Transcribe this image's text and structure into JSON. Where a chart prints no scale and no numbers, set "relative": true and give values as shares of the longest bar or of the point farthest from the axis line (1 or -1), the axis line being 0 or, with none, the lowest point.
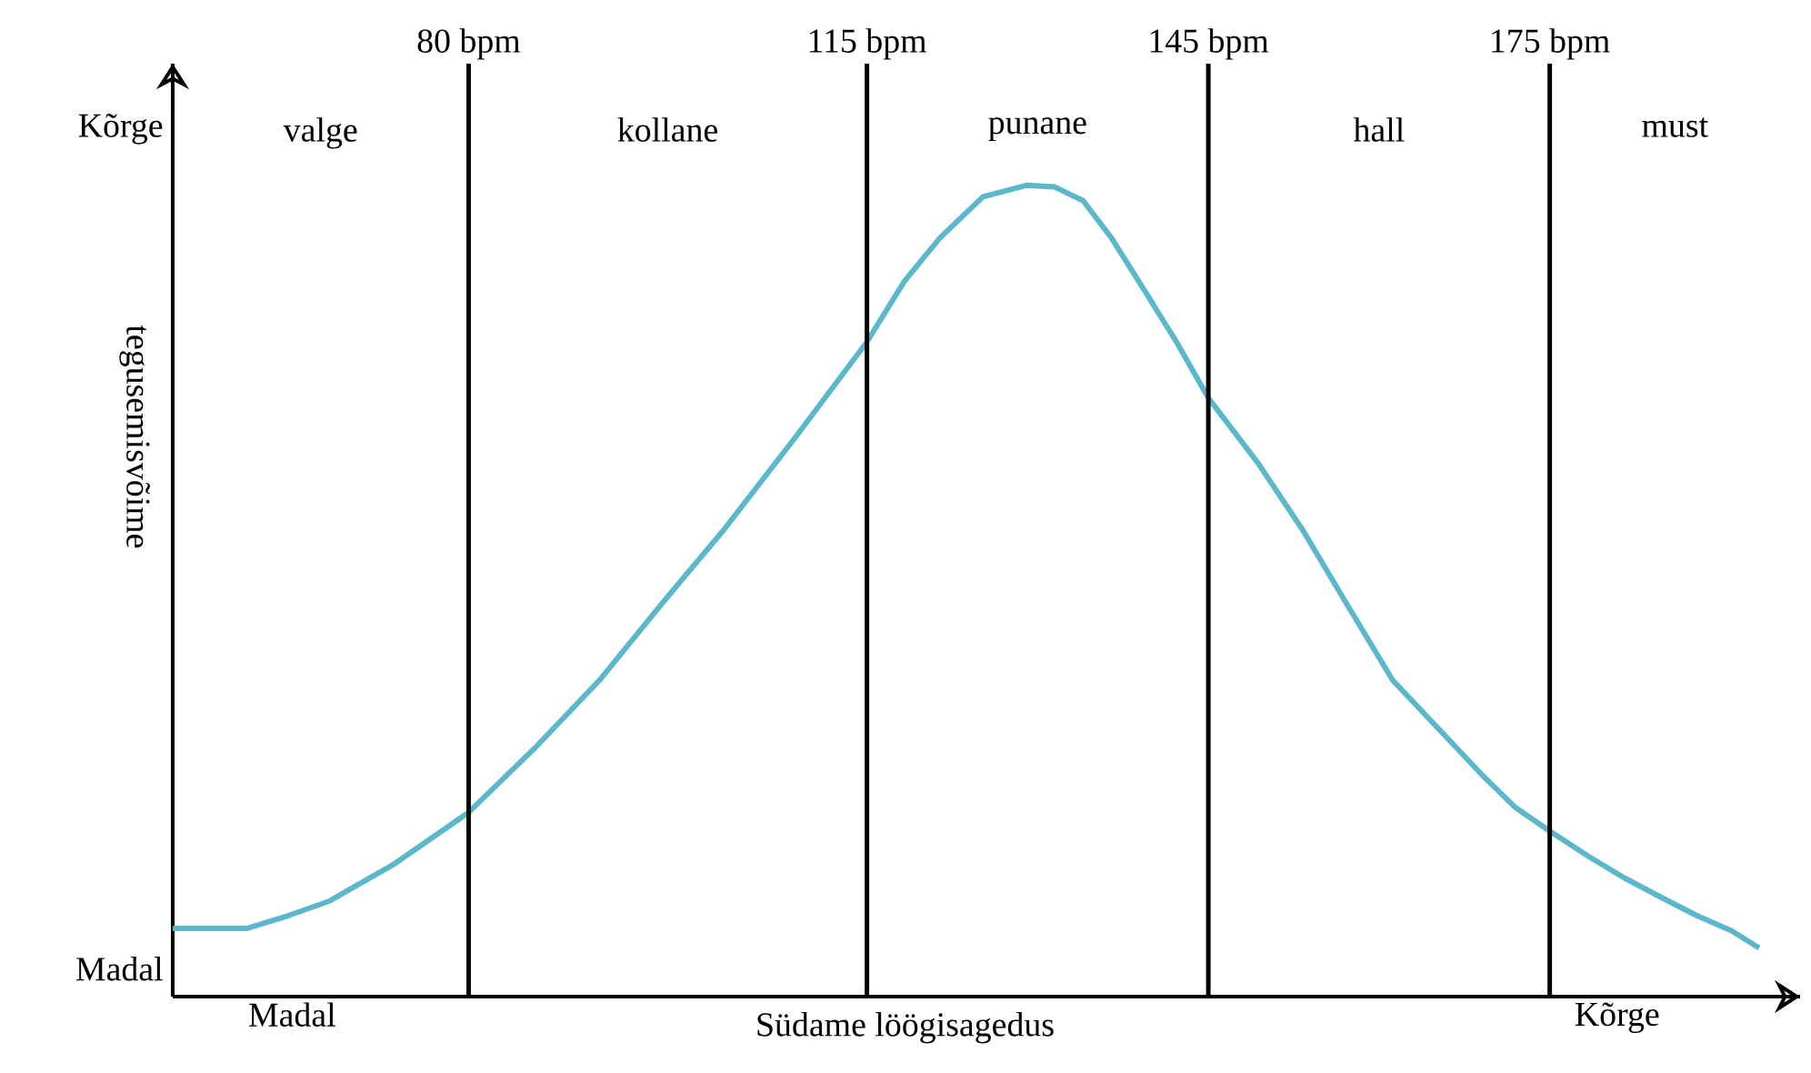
{
  "chart_data": {
    "type": "line",
    "relative": true,
    "xlabel": "Südame löögisagedus",
    "ylabel": "tegusemisvõime",
    "xlim": [
      54,
      197
    ],
    "ylim": [
      0,
      1.15
    ],
    "grid": "x",
    "marker": "none",
    "line_style": "solid",
    "xticks": [
      {
        "value": 80,
        "label": "80 bpm"
      },
      {
        "value": 115,
        "label": "115 bpm"
      },
      {
        "value": 145,
        "label": "145 bpm"
      },
      {
        "value": 175,
        "label": "175 bpm"
      }
    ],
    "x": [
      54,
      60.5,
      64.2,
      67.8,
      73.3,
      80,
      86,
      91.5,
      96.9,
      102.4,
      108.8,
      115,
      118.3,
      121.4,
      125.2,
      129,
      131.5,
      134,
      136.5,
      139.1,
      142.2,
      145,
      149.4,
      153.3,
      157.2,
      161.2,
      165.1,
      169,
      171.9,
      175,
      178.5,
      181.6,
      184.7,
      187.9,
      191,
      193.4
    ],
    "series": [
      {
        "color": "#5bb8cc",
        "values": [
          0.084,
          0.084,
          0.1,
          0.118,
          0.162,
          0.227,
          0.309,
          0.39,
          0.483,
          0.575,
          0.691,
          0.807,
          0.882,
          0.935,
          0.986,
          1,
          0.998,
          0.981,
          0.935,
          0.877,
          0.807,
          0.738,
          0.657,
          0.575,
          0.483,
          0.39,
          0.332,
          0.274,
          0.234,
          0.204,
          0.172,
          0.146,
          0.123,
          0.1,
          0.081,
          0.06
        ]
      }
    ],
    "annotations": [
      "Kõrge",
      "Madal",
      "Madal",
      "Kõrge",
      "valge",
      "kollane",
      "punane",
      "hall",
      "must"
    ]
  }
}
